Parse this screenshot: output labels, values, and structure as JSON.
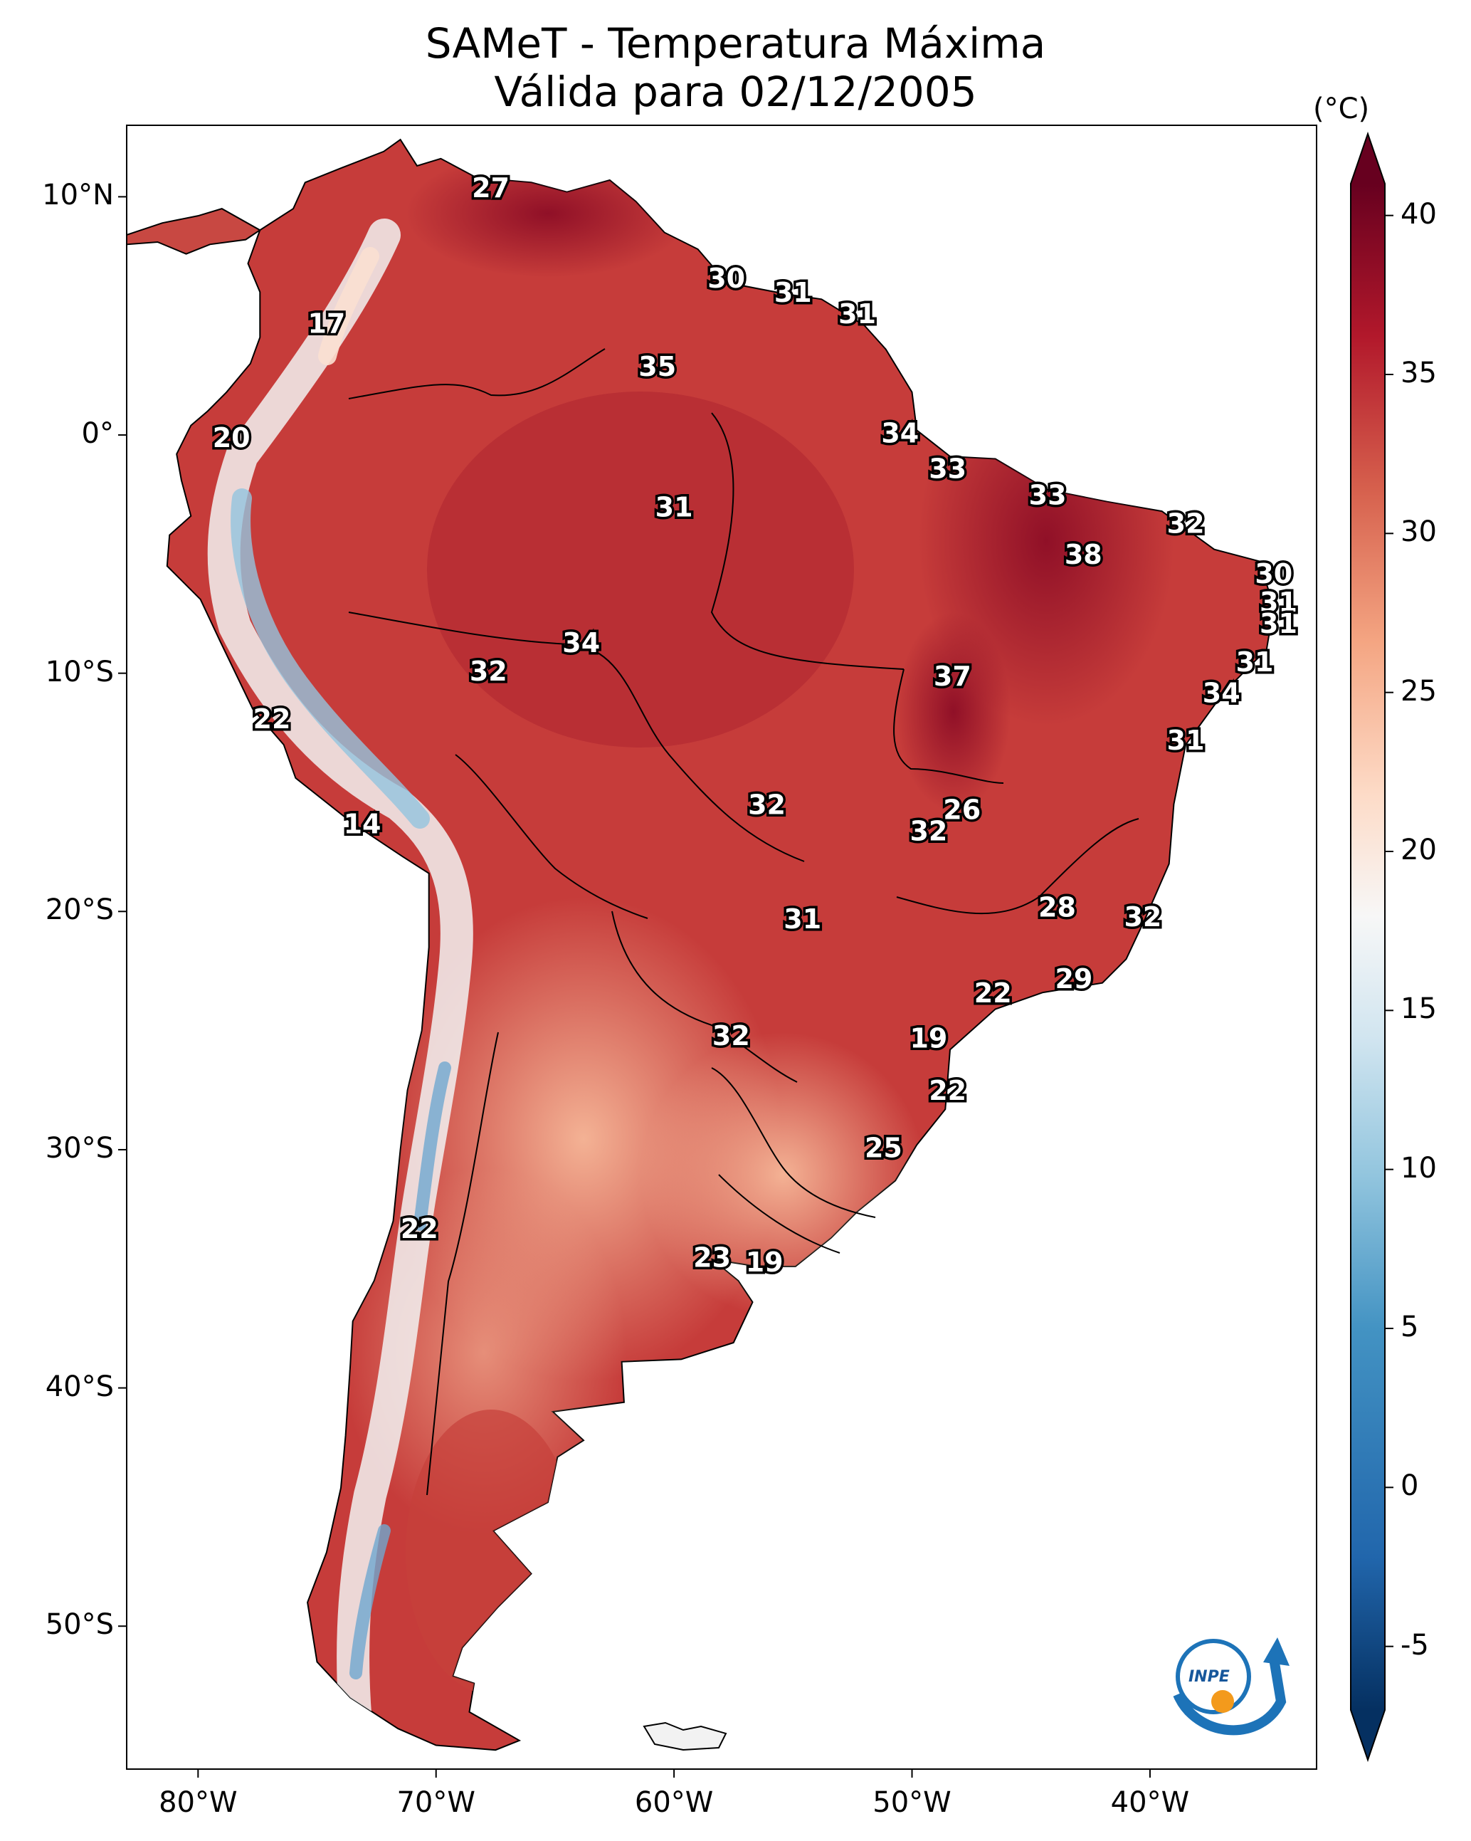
{
  "title": {
    "line1": "SAMeT - Temperatura Máxima",
    "line2": "Válida para 02/12/2005"
  },
  "axes": {
    "lon_labels": [
      "80°W",
      "70°W",
      "60°W",
      "50°W",
      "40°W"
    ],
    "lat_labels": [
      "10°N",
      "0°",
      "10°S",
      "20°S",
      "30°S",
      "40°S",
      "50°S"
    ],
    "lon_range": [
      -83,
      -33
    ],
    "lat_range": [
      13,
      -56
    ]
  },
  "colorbar": {
    "unit": "(°C)",
    "ticks": [
      "40",
      "35",
      "30",
      "25",
      "20",
      "15",
      "10",
      "5",
      "0",
      "-5"
    ],
    "min": -7,
    "max": 41,
    "colors": [
      "#053061",
      "#2166ac",
      "#4393c3",
      "#92c5de",
      "#d1e5f0",
      "#f7f7f7",
      "#fddbc7",
      "#f4a582",
      "#d6604d",
      "#b2182b",
      "#67001f"
    ]
  },
  "station_values": [
    {
      "lon": -67.7,
      "lat": 10.3,
      "v": "27"
    },
    {
      "lon": -57.8,
      "lat": 6.5,
      "v": "30"
    },
    {
      "lon": -55.0,
      "lat": 5.9,
      "v": "31"
    },
    {
      "lon": -52.3,
      "lat": 5.0,
      "v": "31"
    },
    {
      "lon": -74.6,
      "lat": 4.6,
      "v": "17"
    },
    {
      "lon": -60.7,
      "lat": 2.8,
      "v": "35"
    },
    {
      "lon": -78.6,
      "lat": -0.2,
      "v": "20"
    },
    {
      "lon": -50.5,
      "lat": 0.0,
      "v": "34"
    },
    {
      "lon": -48.5,
      "lat": -1.5,
      "v": "33"
    },
    {
      "lon": -44.3,
      "lat": -2.6,
      "v": "33"
    },
    {
      "lon": -60.0,
      "lat": -3.1,
      "v": "31"
    },
    {
      "lon": -38.5,
      "lat": -3.8,
      "v": "32"
    },
    {
      "lon": -42.8,
      "lat": -5.1,
      "v": "38"
    },
    {
      "lon": -34.8,
      "lat": -5.9,
      "v": "30"
    },
    {
      "lon": -34.6,
      "lat": -7.1,
      "v": "31"
    },
    {
      "lon": -34.6,
      "lat": -8.0,
      "v": "31"
    },
    {
      "lon": -63.9,
      "lat": -8.8,
      "v": "34"
    },
    {
      "lon": -67.8,
      "lat": -10.0,
      "v": "32"
    },
    {
      "lon": -48.3,
      "lat": -10.2,
      "v": "37"
    },
    {
      "lon": -35.6,
      "lat": -9.6,
      "v": "31"
    },
    {
      "lon": -37.0,
      "lat": -10.9,
      "v": "34"
    },
    {
      "lon": -76.9,
      "lat": -12.0,
      "v": "22"
    },
    {
      "lon": -38.5,
      "lat": -12.9,
      "v": "31"
    },
    {
      "lon": -56.1,
      "lat": -15.6,
      "v": "32"
    },
    {
      "lon": -47.9,
      "lat": -15.8,
      "v": "26"
    },
    {
      "lon": -49.3,
      "lat": -16.7,
      "v": "32"
    },
    {
      "lon": -73.1,
      "lat": -16.4,
      "v": "14"
    },
    {
      "lon": -43.9,
      "lat": -19.9,
      "v": "28"
    },
    {
      "lon": -54.6,
      "lat": -20.4,
      "v": "31"
    },
    {
      "lon": -40.3,
      "lat": -20.3,
      "v": "32"
    },
    {
      "lon": -43.2,
      "lat": -22.9,
      "v": "29"
    },
    {
      "lon": -46.6,
      "lat": -23.5,
      "v": "22"
    },
    {
      "lon": -57.6,
      "lat": -25.3,
      "v": "32"
    },
    {
      "lon": -49.3,
      "lat": -25.4,
      "v": "19"
    },
    {
      "lon": -48.5,
      "lat": -27.6,
      "v": "22"
    },
    {
      "lon": -51.2,
      "lat": -30.0,
      "v": "25"
    },
    {
      "lon": -70.7,
      "lat": -33.4,
      "v": "22"
    },
    {
      "lon": -58.4,
      "lat": -34.6,
      "v": "23"
    },
    {
      "lon": -56.2,
      "lat": -34.8,
      "v": "19"
    }
  ],
  "logo": {
    "text": "INPE"
  }
}
